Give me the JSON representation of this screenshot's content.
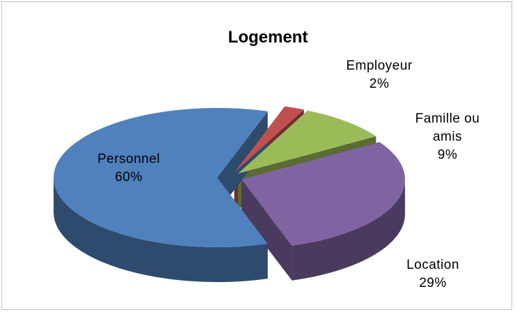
{
  "chart_data": {
    "type": "pie",
    "title": "Logement",
    "categories": [
      "Employeur",
      "Famille ou amis",
      "Location",
      "Personnel"
    ],
    "values": [
      2,
      9,
      29,
      60
    ],
    "value_labels": [
      "2%",
      "9%",
      "29%",
      "60%"
    ],
    "colors": [
      "#c0504d",
      "#9bbb59",
      "#8064a2",
      "#4f81bd"
    ]
  }
}
